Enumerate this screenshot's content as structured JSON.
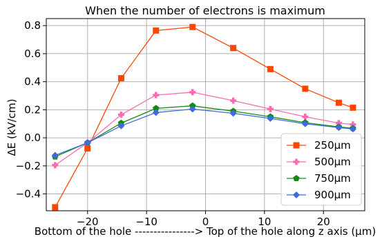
{
  "chart_data": {
    "type": "line",
    "title": "When the number of electrons is maximum",
    "xlabel": "Bottom of the hole ----------------> Top of the hole along z axis (μm)",
    "ylabel": "ΔE (kV/cm)",
    "xlim": [
      -27,
      27
    ],
    "ylim": [
      -0.52,
      0.85
    ],
    "xticks": [
      -20,
      -10,
      0,
      10,
      20
    ],
    "xtick_labels": [
      "−20",
      "−10",
      "0",
      "10",
      "20"
    ],
    "yticks": [
      -0.4,
      -0.2,
      0.0,
      0.2,
      0.4,
      0.6,
      0.8
    ],
    "ytick_labels": [
      "−0.4",
      "−0.2",
      "0.0",
      "0.2",
      "0.4",
      "0.6",
      "0.8"
    ],
    "grid": true,
    "legend_position": "lower-right",
    "series": [
      {
        "name": "250μm",
        "color": "#ff4500",
        "marker": "square",
        "x": [
          -25.5,
          -20,
          -14.3,
          -8.4,
          -2.2,
          4.7,
          11,
          16.9,
          22.6,
          25
        ],
        "y": [
          -0.495,
          -0.075,
          0.425,
          0.765,
          0.79,
          0.64,
          0.49,
          0.35,
          0.25,
          0.215
        ]
      },
      {
        "name": "500μm",
        "color": "#ff69b4",
        "marker": "plus",
        "x": [
          -25.5,
          -20,
          -14.3,
          -8.4,
          -2.2,
          4.7,
          11,
          16.9,
          22.6,
          25
        ],
        "y": [
          -0.195,
          -0.035,
          0.165,
          0.305,
          0.325,
          0.265,
          0.205,
          0.15,
          0.105,
          0.095
        ]
      },
      {
        "name": "750μm",
        "color": "#138a13",
        "marker": "pentagon",
        "x": [
          -25.5,
          -20,
          -14.3,
          -8.4,
          -2.2,
          4.7,
          11,
          16.9,
          22.6,
          25
        ],
        "y": [
          -0.135,
          -0.035,
          0.105,
          0.21,
          0.228,
          0.19,
          0.15,
          0.108,
          0.078,
          0.068
        ]
      },
      {
        "name": "900μm",
        "color": "#4169e1",
        "marker": "diamond",
        "x": [
          -25.5,
          -20,
          -14.3,
          -8.4,
          -2.2,
          4.7,
          11,
          16.9,
          22.6,
          25
        ],
        "y": [
          -0.125,
          -0.035,
          0.085,
          0.18,
          0.205,
          0.175,
          0.138,
          0.1,
          0.073,
          0.063
        ]
      }
    ]
  }
}
